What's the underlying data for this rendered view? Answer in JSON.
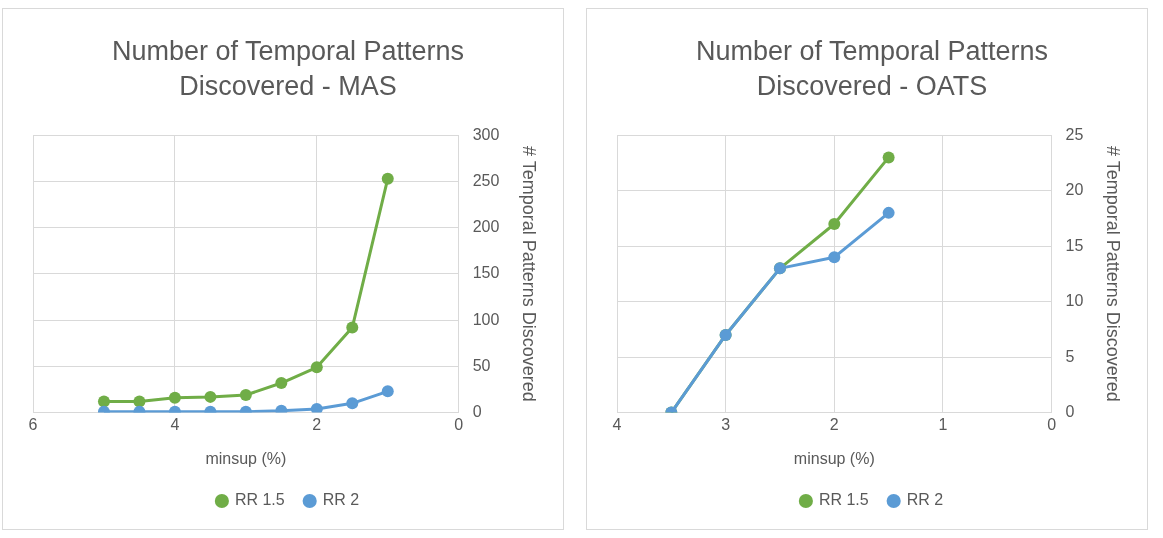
{
  "chart_data": [
    {
      "type": "line",
      "title": "Number of Temporal Patterns Discovered - MAS",
      "xlabel": "minsup (%)",
      "ylabel": "# Temporal Patterns Discovered",
      "x": [
        5,
        4.5,
        4,
        3.5,
        3,
        2.5,
        2,
        1.5,
        1
      ],
      "series": [
        {
          "name": "RR 1.5",
          "color": "#70ad47",
          "values": [
            12,
            12,
            16,
            17,
            19,
            32,
            49,
            92,
            253
          ]
        },
        {
          "name": "RR 2",
          "color": "#5b9bd5",
          "values": [
            1,
            1,
            1,
            1,
            1,
            2,
            4,
            10,
            23
          ]
        }
      ],
      "xlim": [
        6,
        0
      ],
      "xticks": [
        6,
        4,
        2,
        0
      ],
      "ylim": [
        0,
        300
      ],
      "yticks": [
        0,
        50,
        100,
        150,
        200,
        250,
        300
      ],
      "grid": true,
      "legend": "bottom",
      "marker": "circle",
      "line_style": "solid"
    },
    {
      "type": "line",
      "title": "Number of Temporal Patterns Discovered - OATS",
      "xlabel": "minsup (%)",
      "ylabel": "# Temporal Patterns Discovered",
      "x": [
        3.5,
        3,
        2.5,
        2,
        1.5
      ],
      "series": [
        {
          "name": "RR 1.5",
          "color": "#70ad47",
          "values": [
            0,
            7,
            13,
            17,
            23
          ]
        },
        {
          "name": "RR 2",
          "color": "#5b9bd5",
          "values": [
            0,
            7,
            13,
            14,
            18
          ]
        }
      ],
      "xlim": [
        4,
        0
      ],
      "xticks": [
        4,
        3,
        2,
        1,
        0
      ],
      "ylim": [
        0,
        25
      ],
      "yticks": [
        0,
        5,
        10,
        15,
        20,
        25
      ],
      "grid": true,
      "legend": "bottom",
      "marker": "circle",
      "line_style": "solid"
    }
  ]
}
